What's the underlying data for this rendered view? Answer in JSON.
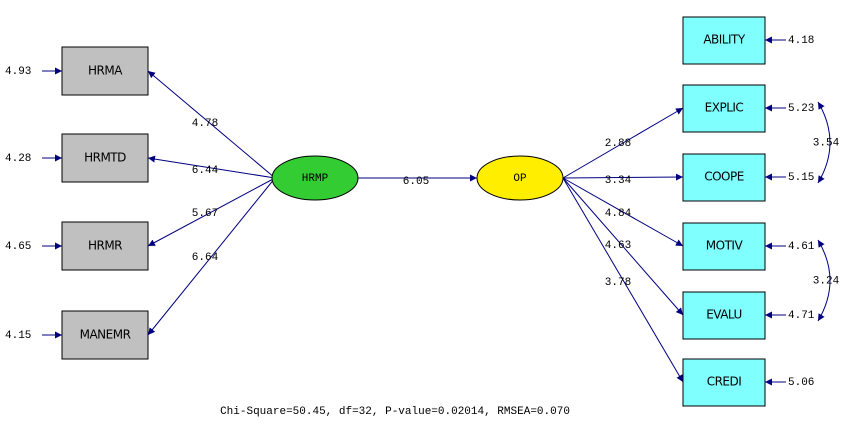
{
  "observed_left": [
    {
      "label": "HRMA",
      "error": "4.93",
      "loading": "4.78"
    },
    {
      "label": "HRMTD",
      "error": "4.28",
      "loading": "6.44"
    },
    {
      "label": "HRMR",
      "error": "4.65",
      "loading": "5.67"
    },
    {
      "label": "MANEMR",
      "error": "4.15",
      "loading": "6.64"
    }
  ],
  "latent": [
    {
      "label": "HRMP"
    },
    {
      "label": "OP"
    }
  ],
  "structural_path": "6.05",
  "observed_right": [
    {
      "label": "ABILITY",
      "error": "4.18"
    },
    {
      "label": "EXPLIC",
      "error": "5.23",
      "loading": "2.88"
    },
    {
      "label": "COOPE",
      "error": "5.15",
      "loading": "3.34"
    },
    {
      "label": "MOTIV",
      "error": "4.61",
      "loading": "4.84"
    },
    {
      "label": "EVALU",
      "error": "4.71",
      "loading": "4.63"
    },
    {
      "label": "CREDI",
      "error": "5.06",
      "loading": "3.78"
    }
  ],
  "covariances": [
    {
      "label": "3.54"
    },
    {
      "label": "3.24"
    }
  ],
  "fit": "Chi-Square=50.45, df=32, P-value=0.02014, RMSEA=0.070"
}
